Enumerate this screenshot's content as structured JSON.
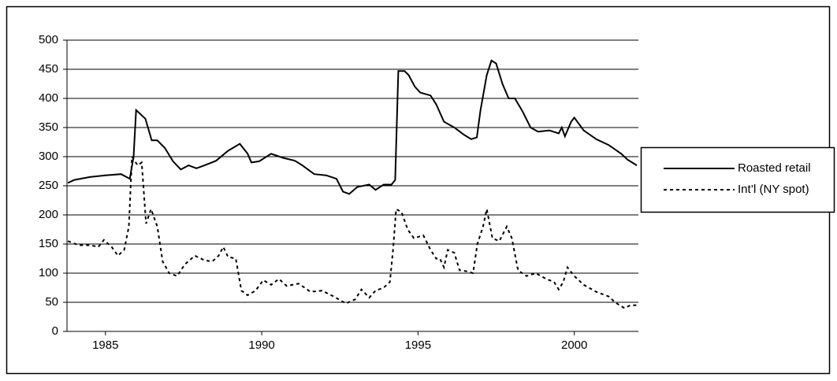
{
  "chart_data": {
    "type": "line",
    "xlim": [
      1983.77,
      2002.05
    ],
    "xticks": [
      1985,
      1990,
      1995,
      2000
    ],
    "ylim": [
      0,
      500
    ],
    "yticks": [
      0,
      50,
      100,
      150,
      200,
      250,
      300,
      350,
      400,
      450,
      500
    ],
    "grid": true,
    "legend": "right",
    "series": [
      {
        "name": "Roasted retail",
        "color": "#000000",
        "dash": "solid",
        "x": [
          1983.8,
          1984.0,
          1984.5,
          1985.0,
          1985.5,
          1985.78,
          1985.9,
          1985.98,
          1986.28,
          1986.48,
          1986.66,
          1986.9,
          1987.16,
          1987.41,
          1987.66,
          1987.91,
          1988.17,
          1988.54,
          1988.92,
          1989.3,
          1989.55,
          1989.67,
          1989.92,
          1990.3,
          1990.68,
          1991.06,
          1991.3,
          1991.68,
          1992.06,
          1992.39,
          1992.6,
          1992.8,
          1993.06,
          1993.44,
          1993.64,
          1993.9,
          1994.15,
          1994.27,
          1994.37,
          1994.57,
          1994.7,
          1994.9,
          1995.07,
          1995.4,
          1995.58,
          1995.83,
          1996.16,
          1996.46,
          1996.7,
          1996.88,
          1997.0,
          1997.2,
          1997.35,
          1997.5,
          1997.7,
          1997.9,
          1998.1,
          1998.34,
          1998.6,
          1998.84,
          1999.2,
          1999.5,
          1999.6,
          1999.7,
          1999.9,
          2000.0,
          2000.3,
          2000.7,
          2001.1,
          2001.5,
          2001.7,
          2002.0
        ],
        "values": [
          255,
          260,
          265,
          268,
          270,
          262,
          300,
          380,
          365,
          328,
          328,
          315,
          292,
          278,
          285,
          280,
          285,
          293,
          310,
          322,
          305,
          290,
          292,
          305,
          298,
          293,
          285,
          270,
          268,
          262,
          240,
          236,
          248,
          252,
          243,
          252,
          252,
          260,
          447,
          447,
          440,
          420,
          410,
          405,
          390,
          360,
          350,
          338,
          330,
          333,
          380,
          440,
          465,
          460,
          425,
          400,
          400,
          378,
          350,
          343,
          345,
          340,
          350,
          335,
          360,
          367,
          345,
          330,
          320,
          305,
          295,
          285
        ]
      },
      {
        "name": "Int’l (NY spot)",
        "color": "#000000",
        "dash": "dashed",
        "x": [
          1983.8,
          1984.15,
          1984.52,
          1984.77,
          1984.95,
          1985.2,
          1985.4,
          1985.6,
          1985.75,
          1985.85,
          1986.03,
          1986.16,
          1986.3,
          1986.46,
          1986.66,
          1986.83,
          1987.04,
          1987.29,
          1987.54,
          1987.86,
          1988.17,
          1988.42,
          1988.62,
          1988.77,
          1988.92,
          1989.17,
          1989.35,
          1989.55,
          1989.8,
          1990.05,
          1990.3,
          1990.55,
          1990.8,
          1991.18,
          1991.56,
          1991.93,
          1992.3,
          1992.69,
          1992.99,
          1993.19,
          1993.44,
          1993.64,
          1993.9,
          1994.1,
          1994.2,
          1994.3,
          1994.47,
          1994.67,
          1994.87,
          1995.17,
          1995.4,
          1995.58,
          1995.7,
          1995.83,
          1995.95,
          1996.16,
          1996.33,
          1996.58,
          1996.76,
          1996.9,
          1997.08,
          1997.2,
          1997.38,
          1997.6,
          1997.84,
          1998.0,
          1998.2,
          1998.47,
          1998.77,
          1999.1,
          1999.35,
          1999.5,
          1999.65,
          1999.78,
          2000.0,
          2000.3,
          2000.7,
          2001.1,
          2001.3,
          2001.6,
          2001.8,
          2002.0
        ],
        "values": [
          155,
          148,
          148,
          145,
          157,
          145,
          130,
          140,
          180,
          300,
          285,
          290,
          185,
          210,
          180,
          120,
          100,
          95,
          115,
          130,
          122,
          120,
          130,
          145,
          128,
          125,
          70,
          62,
          70,
          88,
          80,
          90,
          78,
          82,
          68,
          70,
          60,
          48,
          55,
          72,
          58,
          70,
          75,
          85,
          140,
          210,
          205,
          175,
          160,
          165,
          140,
          125,
          125,
          110,
          140,
          135,
          105,
          103,
          100,
          150,
          180,
          210,
          160,
          155,
          180,
          160,
          105,
          95,
          100,
          90,
          85,
          72,
          85,
          110,
          95,
          80,
          68,
          60,
          50,
          40,
          45,
          45
        ]
      }
    ]
  }
}
